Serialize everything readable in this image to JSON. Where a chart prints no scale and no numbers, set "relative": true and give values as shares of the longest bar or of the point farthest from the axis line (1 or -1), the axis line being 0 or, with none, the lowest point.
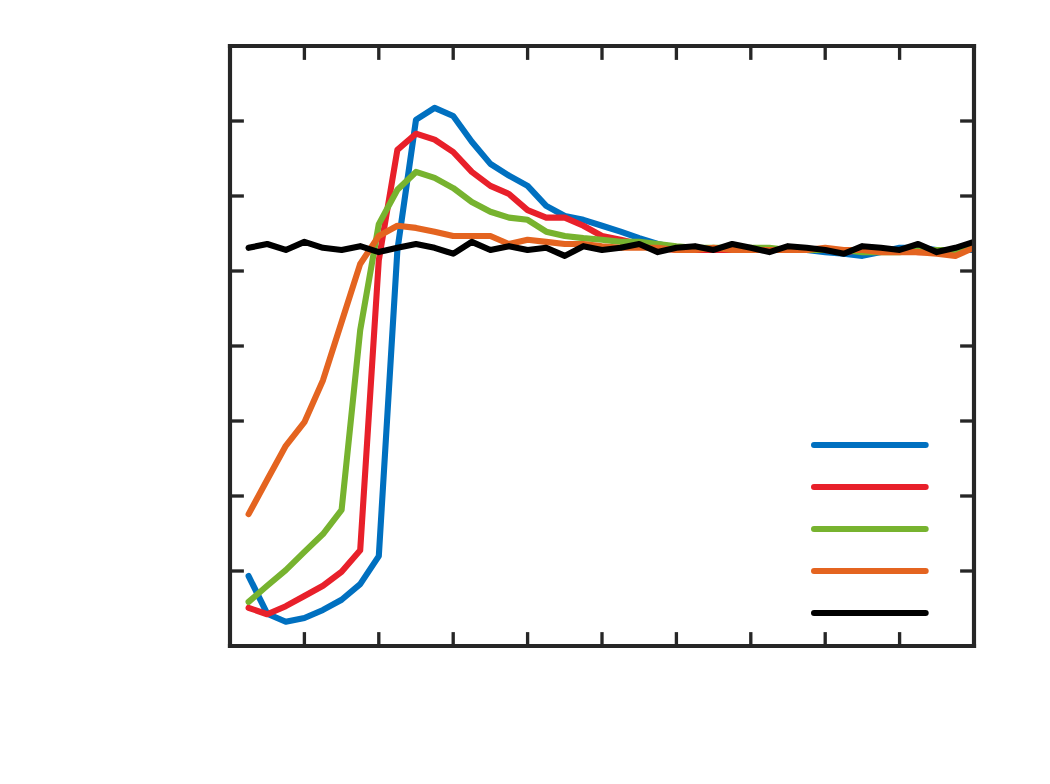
{
  "chart_data": {
    "type": "line",
    "relative": true,
    "marker": "none",
    "line_style": "solid",
    "grid": false,
    "tick_labels": false,
    "categories": [
      null,
      null,
      null,
      null,
      null,
      null,
      null,
      null,
      null,
      null,
      null,
      null,
      null,
      null,
      null,
      null,
      null,
      null,
      null,
      null,
      null,
      null,
      null,
      null,
      null,
      null,
      null,
      null,
      null,
      null,
      null,
      null,
      null,
      null,
      null,
      null,
      null,
      null,
      null,
      null
    ],
    "series": [
      {
        "color": "#0070c0",
        "values": [
          0.13,
          0.06,
          0.045,
          0.052,
          0.067,
          0.086,
          0.115,
          0.167,
          0.736,
          0.978,
          1,
          0.985,
          0.937,
          0.896,
          0.874,
          0.855,
          0.818,
          0.799,
          0.792,
          0.781,
          0.77,
          0.758,
          0.747,
          0.74,
          0.736,
          0.736,
          0.736,
          0.736,
          0.736,
          0.736,
          0.736,
          0.732,
          0.729,
          0.725,
          0.732,
          0.74,
          0.74,
          0.736,
          0.736,
          0.736
        ]
      },
      {
        "color": "#e8202a",
        "values": [
          0.071,
          0.059,
          0.074,
          0.093,
          0.112,
          0.138,
          0.178,
          0.717,
          0.922,
          0.952,
          0.941,
          0.918,
          0.881,
          0.855,
          0.84,
          0.81,
          0.796,
          0.796,
          0.781,
          0.762,
          0.755,
          0.747,
          0.74,
          0.736,
          0.736,
          0.736,
          0.736,
          0.736,
          0.736,
          0.736,
          0.736,
          0.736,
          0.732,
          0.736,
          0.736,
          0.736,
          0.732,
          0.732,
          0.736,
          0.74
        ]
      },
      {
        "color": "#77b32f",
        "values": [
          0.082,
          0.112,
          0.141,
          0.175,
          0.208,
          0.253,
          0.587,
          0.784,
          0.848,
          0.881,
          0.87,
          0.851,
          0.825,
          0.807,
          0.796,
          0.792,
          0.77,
          0.762,
          0.758,
          0.755,
          0.751,
          0.751,
          0.747,
          0.743,
          0.74,
          0.74,
          0.74,
          0.74,
          0.74,
          0.736,
          0.736,
          0.736,
          0.736,
          0.732,
          0.732,
          0.732,
          0.736,
          0.736,
          0.736,
          0.74
        ]
      },
      {
        "color": "#e46420",
        "values": [
          0.245,
          0.309,
          0.372,
          0.416,
          0.494,
          0.602,
          0.71,
          0.762,
          0.781,
          0.777,
          0.77,
          0.762,
          0.762,
          0.762,
          0.747,
          0.755,
          0.751,
          0.747,
          0.747,
          0.743,
          0.74,
          0.74,
          0.74,
          0.736,
          0.736,
          0.74,
          0.736,
          0.736,
          0.736,
          0.736,
          0.736,
          0.74,
          0.736,
          0.736,
          0.732,
          0.732,
          0.732,
          0.729,
          0.725,
          0.74
        ]
      },
      {
        "color": "#000000",
        "values": [
          0.74,
          0.747,
          0.736,
          0.751,
          0.74,
          0.736,
          0.743,
          0.732,
          0.74,
          0.747,
          0.74,
          0.729,
          0.751,
          0.736,
          0.743,
          0.736,
          0.74,
          0.725,
          0.743,
          0.736,
          0.74,
          0.747,
          0.732,
          0.74,
          0.743,
          0.736,
          0.747,
          0.74,
          0.732,
          0.743,
          0.74,
          0.736,
          0.729,
          0.743,
          0.74,
          0.736,
          0.747,
          0.732,
          0.74,
          0.751
        ]
      }
    ]
  }
}
